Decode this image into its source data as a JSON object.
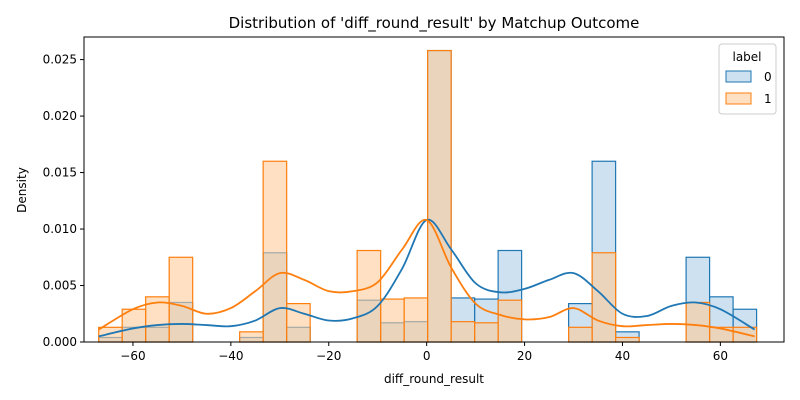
{
  "chart_data": {
    "type": "histogram",
    "title": "Distribution of 'diff_round_result' by Matchup Outcome",
    "xlabel": "diff_round_result",
    "ylabel": "Density",
    "xlim": [
      -70,
      73
    ],
    "ylim": [
      0,
      0.027
    ],
    "xticks": [
      -60,
      -40,
      -20,
      0,
      20,
      40,
      60
    ],
    "yticks": [
      0.0,
      0.005,
      0.01,
      0.015,
      0.02,
      0.025
    ],
    "ytick_labels": [
      "0.000",
      "0.005",
      "0.010",
      "0.015",
      "0.020",
      "0.025"
    ],
    "xtick_labels": [
      "−60",
      "−40",
      "−20",
      "0",
      "20",
      "40",
      "60"
    ],
    "grid": false,
    "legend": {
      "title": "label",
      "placement": "top-right",
      "entries": [
        "0",
        "1"
      ]
    },
    "bin_edges": [
      -67,
      -62.2,
      -57.4,
      -52.6,
      -47.8,
      -43,
      -38.2,
      -33.4,
      -28.6,
      -23.8,
      -19,
      -14.2,
      -9.4,
      -4.6,
      0.2,
      5,
      9.8,
      14.6,
      19.4,
      24.2,
      29,
      33.8,
      38.6,
      43.4,
      48.2,
      53,
      57.8,
      62.6,
      67.4
    ],
    "series": [
      {
        "name": "0",
        "color": "#1f77b4",
        "fill": "#aecde8",
        "values": [
          0.0004,
          0.0013,
          0.0013,
          0.0035,
          0,
          0,
          0.0004,
          0.0079,
          0.0013,
          0,
          0,
          0.0037,
          0.0017,
          0.0018,
          0.0258,
          0.0039,
          0.0038,
          0.0081,
          0,
          0,
          0.0034,
          0.016,
          0.0009,
          0,
          0,
          0.0075,
          0.004,
          0.0029,
          0.0013
        ],
        "kde_x": [
          -67,
          -60,
          -55,
          -50,
          -45,
          -40,
          -35,
          -30,
          -25,
          -20,
          -15,
          -10,
          -5,
          0,
          5,
          10,
          15,
          20,
          25,
          30,
          35,
          40,
          45,
          50,
          55,
          60,
          67
        ],
        "kde_y": [
          0.0005,
          0.0012,
          0.0015,
          0.0016,
          0.0015,
          0.0014,
          0.0019,
          0.003,
          0.0025,
          0.0019,
          0.0021,
          0.0032,
          0.0065,
          0.0108,
          0.0082,
          0.0052,
          0.0044,
          0.0047,
          0.0055,
          0.0061,
          0.0045,
          0.0025,
          0.0023,
          0.0032,
          0.0035,
          0.0029,
          0.0011
        ]
      },
      {
        "name": "1",
        "color": "#ff7f0e",
        "fill": "#ffcc99",
        "values": [
          0.0013,
          0.0029,
          0.004,
          0.0075,
          0,
          0,
          0.0009,
          0.016,
          0.0034,
          0,
          0,
          0.0081,
          0.0038,
          0.0039,
          0.0258,
          0.0018,
          0.0017,
          0.0037,
          0,
          0,
          0.0013,
          0.0079,
          0.0004,
          0,
          0,
          0.0035,
          0.0013,
          0.0013,
          0.0004
        ],
        "kde_x": [
          -67,
          -60,
          -55,
          -50,
          -45,
          -40,
          -35,
          -30,
          -25,
          -20,
          -15,
          -10,
          -5,
          0,
          5,
          10,
          15,
          20,
          25,
          30,
          35,
          40,
          45,
          50,
          55,
          60,
          67
        ],
        "kde_y": [
          0.0011,
          0.0029,
          0.0035,
          0.0032,
          0.0025,
          0.003,
          0.0045,
          0.0061,
          0.0055,
          0.0045,
          0.0045,
          0.0053,
          0.0082,
          0.0108,
          0.0066,
          0.0034,
          0.0024,
          0.002,
          0.0022,
          0.003,
          0.0019,
          0.0014,
          0.0015,
          0.0016,
          0.0015,
          0.0012,
          0.0005
        ]
      }
    ]
  }
}
